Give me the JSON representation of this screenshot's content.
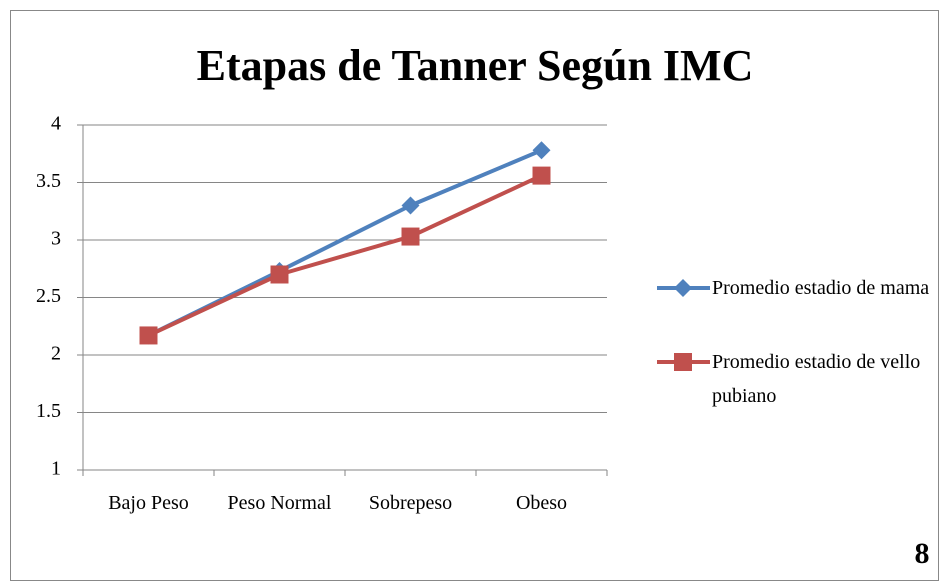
{
  "chart_data": {
    "type": "line",
    "title": "Etapas de Tanner Según IMC",
    "categories": [
      "Bajo Peso",
      "Peso Normal",
      "Sobrepeso",
      "Obeso"
    ],
    "series": [
      {
        "name": "Promedio estadio de mama",
        "color": "#4f81bd",
        "marker": "diamond",
        "values": [
          2.17,
          2.73,
          3.3,
          3.78
        ]
      },
      {
        "name": "Promedio estadio de vello pubiano",
        "color": "#c0504d",
        "marker": "square",
        "values": [
          2.17,
          2.7,
          3.03,
          3.56
        ]
      }
    ],
    "ylim": [
      1,
      4
    ],
    "yticks": [
      1,
      1.5,
      2,
      2.5,
      3,
      3.5,
      4
    ],
    "grid": true,
    "legend": "right",
    "annotations": [
      "8"
    ]
  }
}
